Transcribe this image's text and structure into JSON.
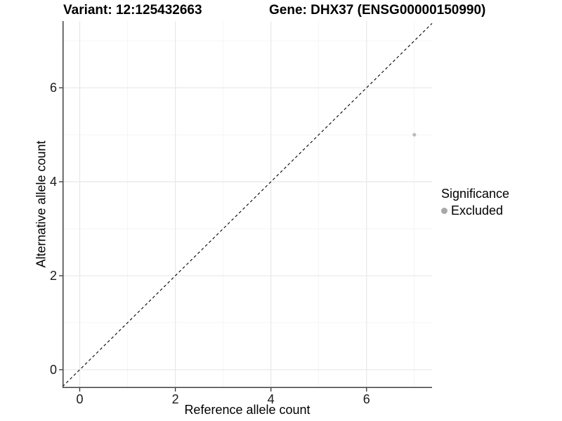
{
  "header": {
    "title_left": "Variant: 12:125432663",
    "title_right": "Gene: DHX37 (ENSG00000150990)"
  },
  "chart_data": {
    "type": "scatter",
    "xlabel": "Reference allele count",
    "ylabel": "Alternative allele count",
    "xlim": [
      -0.36,
      7.37
    ],
    "ylim": [
      -0.39,
      7.42
    ],
    "x_major_ticks": [
      0,
      2,
      4,
      6
    ],
    "y_major_ticks": [
      0,
      2,
      4,
      6
    ],
    "x_minor_ticks": [
      1,
      3,
      5,
      7
    ],
    "y_minor_ticks": [
      1,
      3,
      5,
      7
    ],
    "points": [
      {
        "x": 7,
        "y": 5,
        "significance": "Excluded"
      }
    ],
    "point_color": "#bcbcbc",
    "reference_line": {
      "slope": 1,
      "intercept": 0,
      "style": "dashed",
      "color": "#000000"
    },
    "legend": {
      "title": "Significance",
      "position": "right",
      "entries": [
        {
          "label": "Excluded",
          "color": "#a8a8a8",
          "marker": "circle"
        }
      ]
    },
    "grid": {
      "major_color": "#e8e8e8",
      "minor_color": "#f3f3f3"
    },
    "axis_color": "#404040",
    "tick_color": "#333333"
  }
}
